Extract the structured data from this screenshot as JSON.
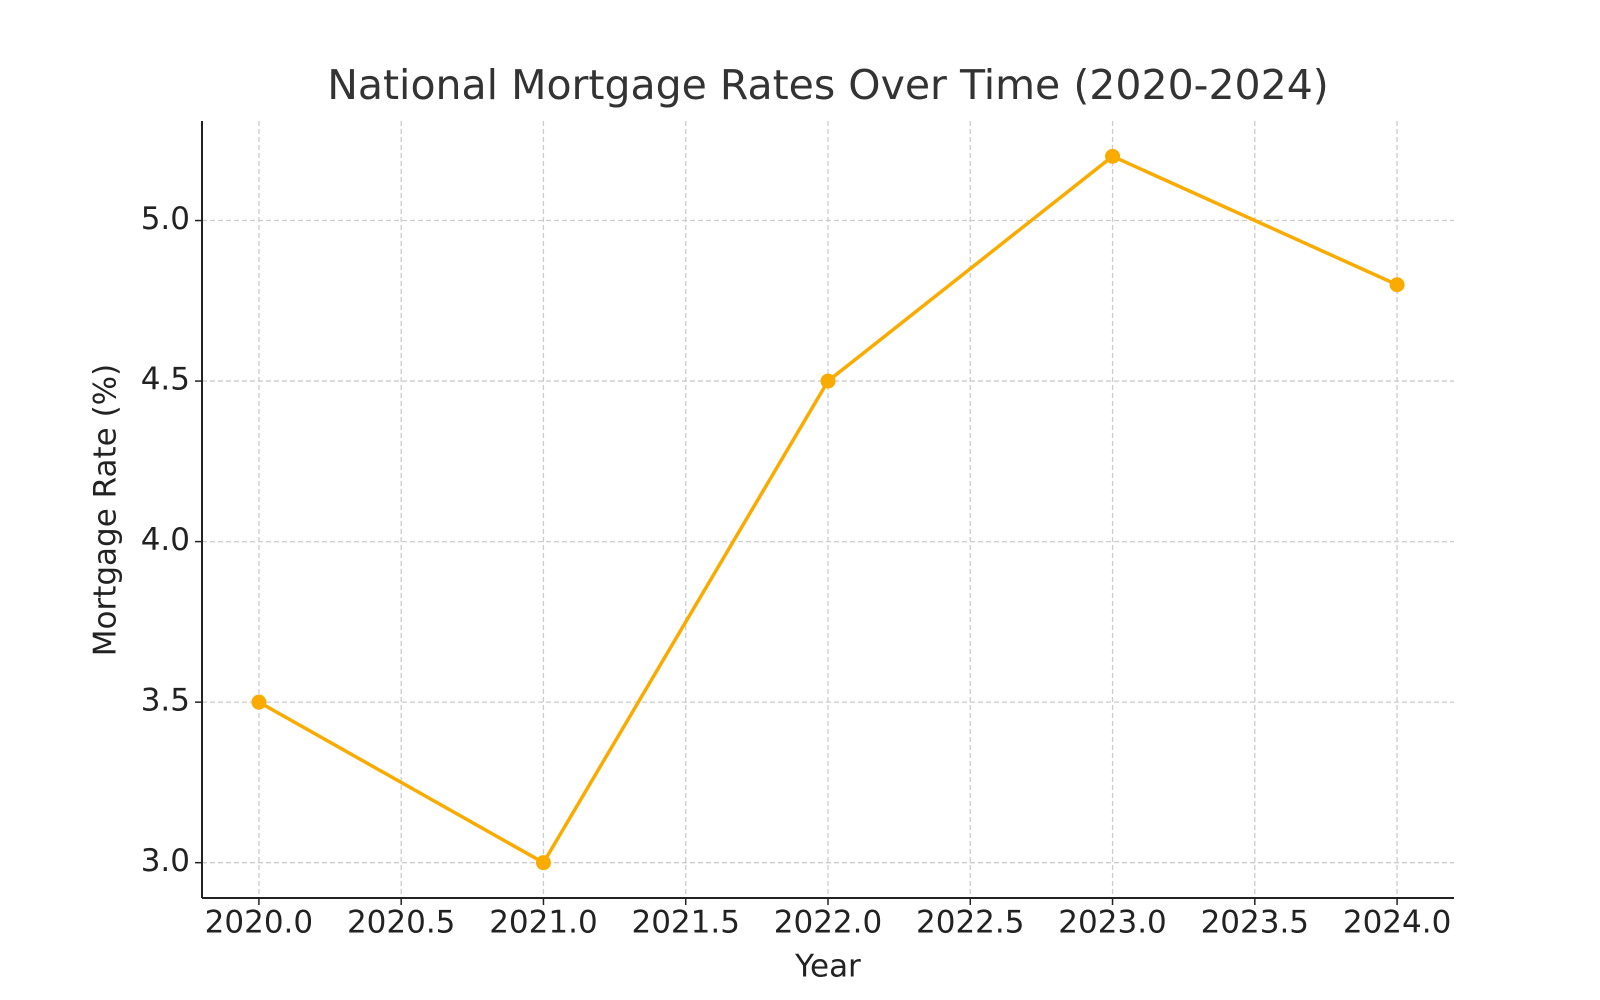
{
  "chart_data": {
    "type": "line",
    "title": "National Mortgage Rates Over Time (2020-2024)",
    "x_label": "Year",
    "y_label": "Mortgage Rate (%)",
    "x": [
      2020,
      2021,
      2022,
      2023,
      2024
    ],
    "series": [
      {
        "color": "#f9ab00",
        "values": [
          3.5,
          3.0,
          4.5,
          5.2,
          4.8
        ]
      }
    ],
    "xlim": [
      2019.8,
      2024.2
    ],
    "xticks": [
      {
        "value": 2020,
        "label": "2020.0"
      },
      2020.5,
      {
        "value": 2021,
        "label": "2021.0"
      },
      2021.5,
      {
        "value": 2022,
        "label": "2022.0"
      },
      2022.5,
      {
        "value": 2023,
        "label": "2023.0"
      },
      2023.5,
      {
        "value": 2024,
        "label": "2024.0"
      }
    ],
    "ylim": [
      2.89,
      5.31
    ],
    "yticks": [
      {
        "value": 3,
        "label": "3.0"
      },
      3.5,
      {
        "value": 4,
        "label": "4.0"
      },
      4.5,
      {
        "value": 5,
        "label": "5.0"
      }
    ],
    "grid": true
  }
}
